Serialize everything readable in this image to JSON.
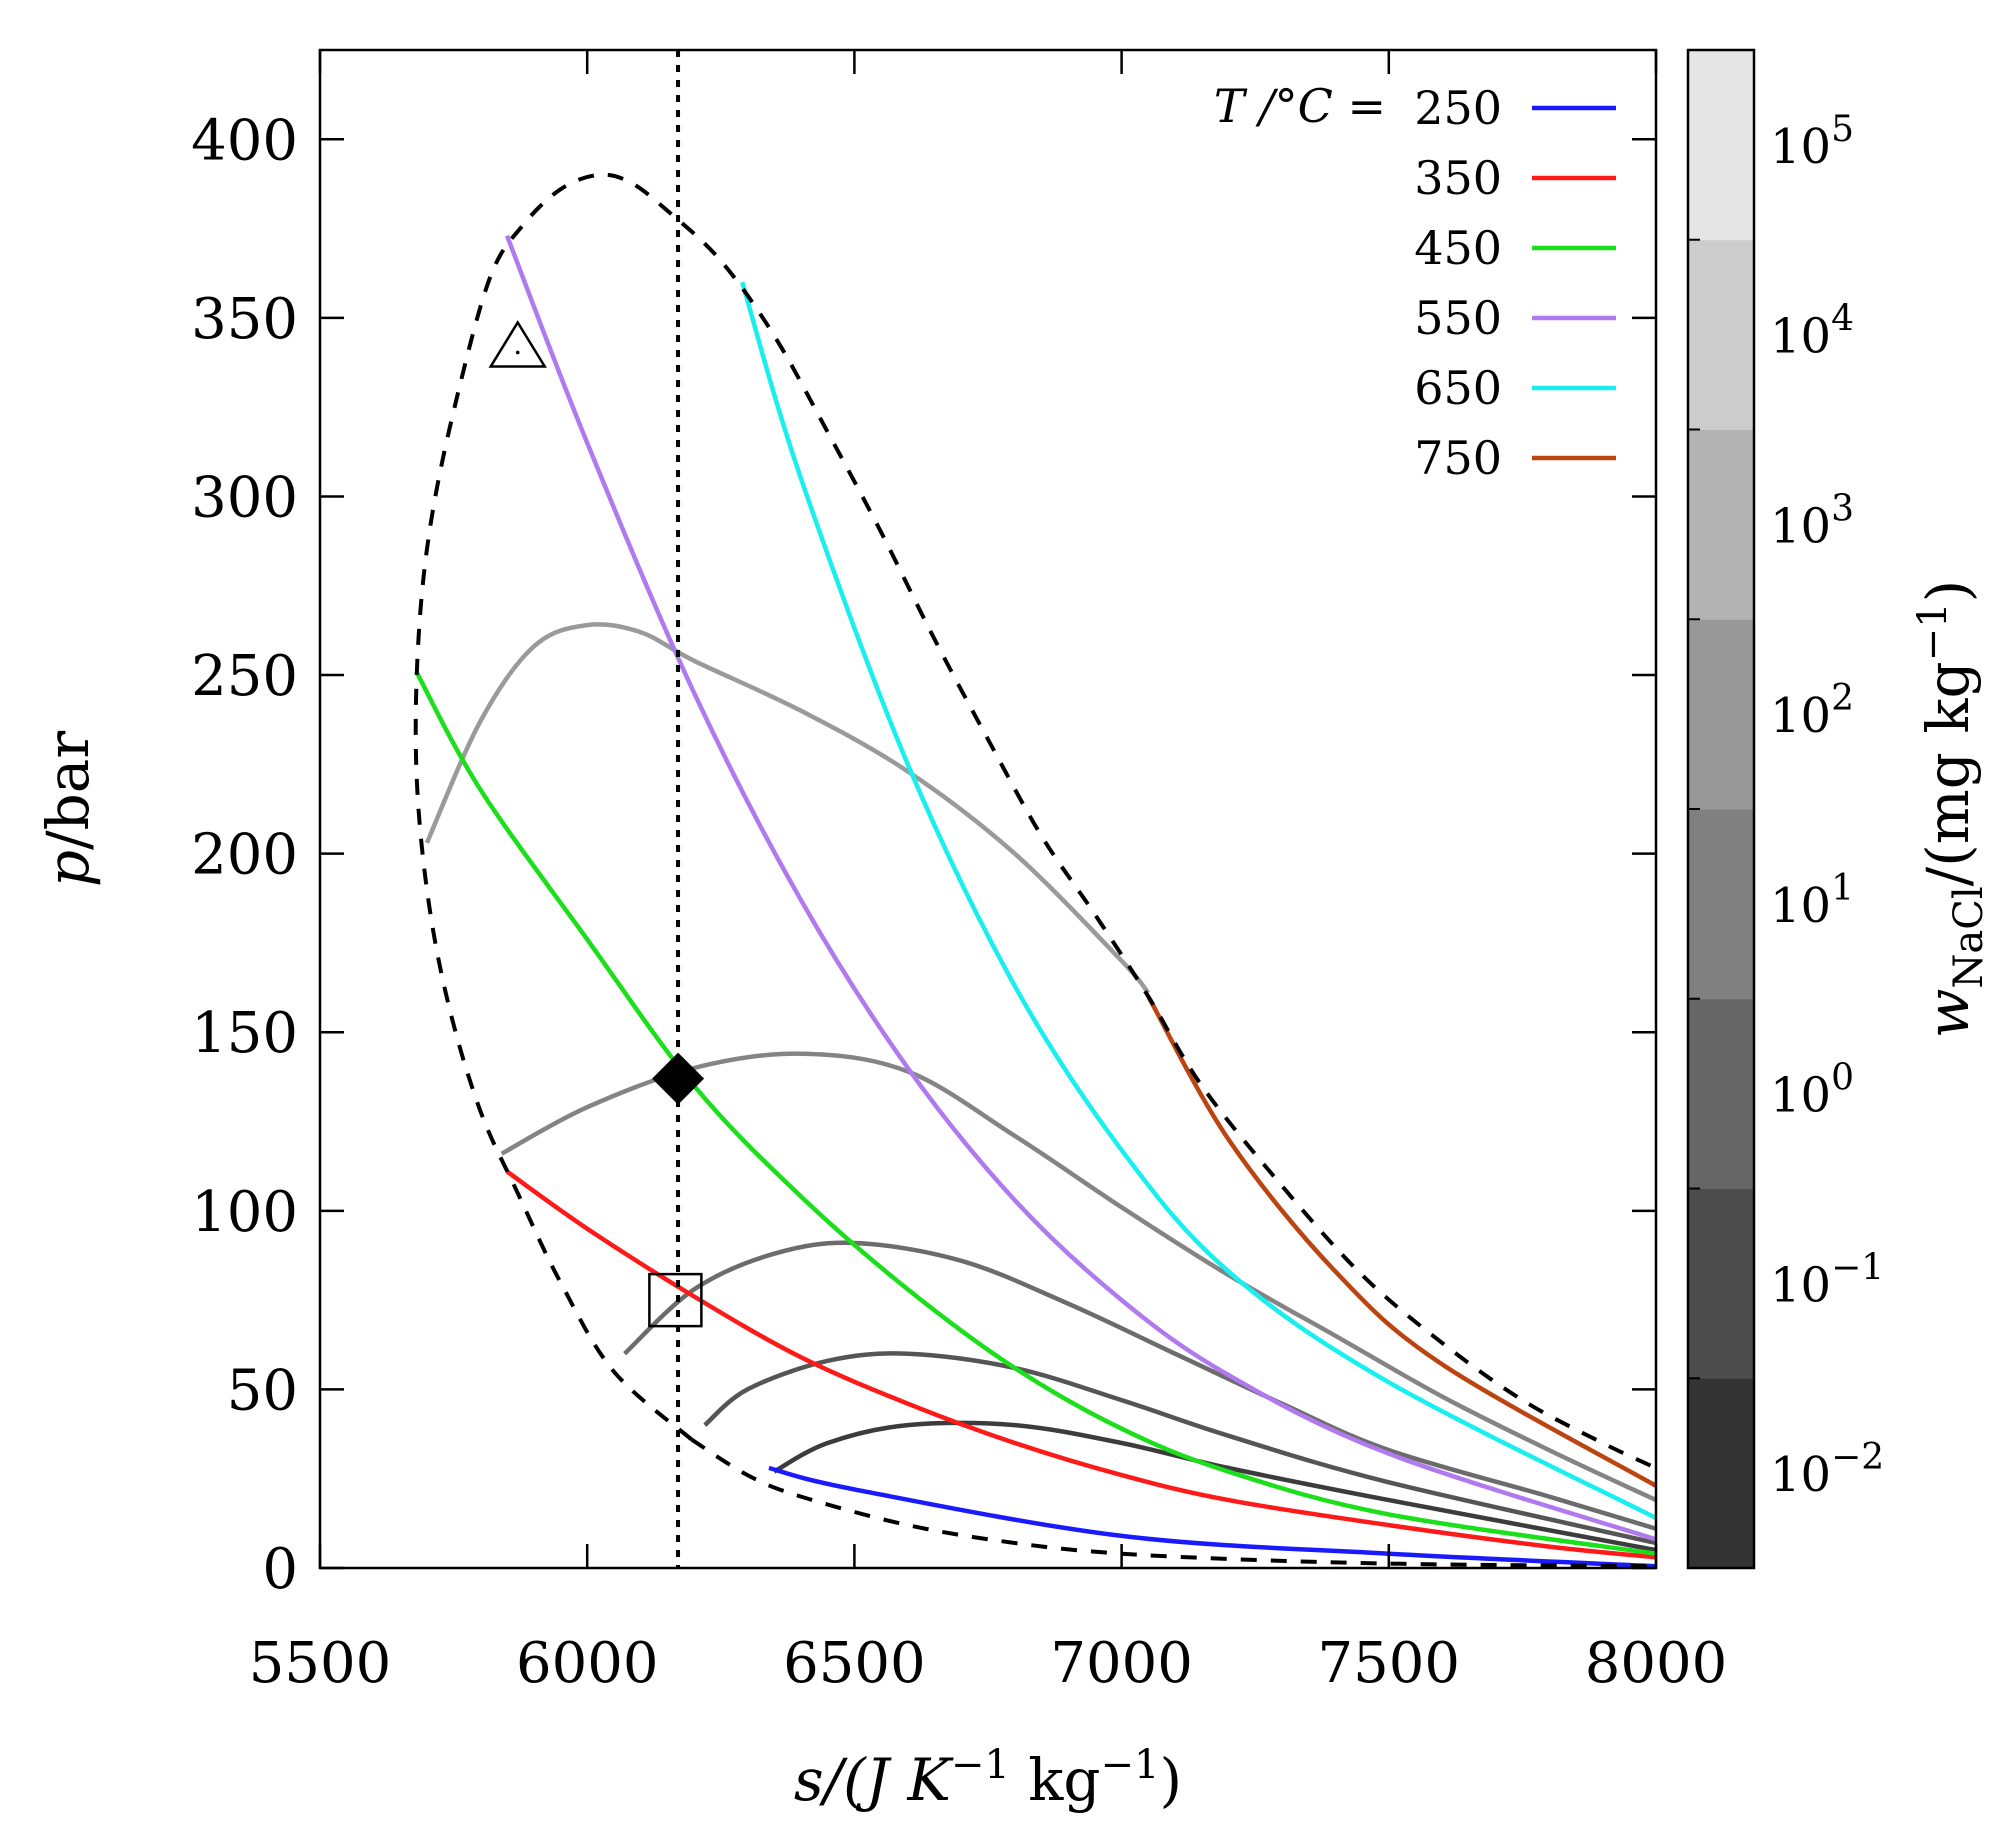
{
  "chart_data": {
    "type": "line",
    "xlabel": {
      "main": "s/(J K",
      "sup1": "−1",
      "mid": " kg",
      "sup2": "−1",
      "end": ")"
    },
    "ylabel": {
      "main": "p",
      "rest": "/bar"
    },
    "xlim": [
      5500,
      8000
    ],
    "ylim": [
      0,
      425
    ],
    "xticks": [
      5500,
      6000,
      6500,
      7000,
      7500,
      8000
    ],
    "yticks": [
      0,
      50,
      100,
      150,
      200,
      250,
      300,
      350,
      400
    ],
    "legend_title": "T /°C =",
    "legend_position": "top-right",
    "isotherms": [
      {
        "name": "250",
        "color": "#1a1aff",
        "points": [
          [
            6340,
            28
          ],
          [
            6500,
            22
          ],
          [
            7000,
            9
          ],
          [
            7500,
            4
          ],
          [
            8000,
            0.5
          ]
        ]
      },
      {
        "name": "350",
        "color": "#ff1a1a",
        "points": [
          [
            5850,
            111
          ],
          [
            6000,
            95
          ],
          [
            6200,
            76
          ],
          [
            6400,
            59
          ],
          [
            6600,
            46
          ],
          [
            6800,
            35
          ],
          [
            7000,
            26
          ],
          [
            7200,
            19
          ],
          [
            7500,
            12
          ],
          [
            7800,
            6
          ],
          [
            8000,
            3
          ]
        ]
      },
      {
        "name": "450",
        "color": "#1adf1a",
        "points": [
          [
            5680,
            251
          ],
          [
            5800,
            218
          ],
          [
            6000,
            176
          ],
          [
            6200,
            135
          ],
          [
            6400,
            104
          ],
          [
            6600,
            78
          ],
          [
            6800,
            56
          ],
          [
            7000,
            39
          ],
          [
            7200,
            27
          ],
          [
            7500,
            15
          ],
          [
            8000,
            4
          ]
        ]
      },
      {
        "name": "550",
        "color": "#b07aee",
        "points": [
          [
            5850,
            373
          ],
          [
            6000,
            315
          ],
          [
            6200,
            245
          ],
          [
            6400,
            187
          ],
          [
            6600,
            140
          ],
          [
            6800,
            103
          ],
          [
            7000,
            75
          ],
          [
            7200,
            54
          ],
          [
            7500,
            32
          ],
          [
            8000,
            8
          ]
        ]
      },
      {
        "name": "650",
        "color": "#1aefef",
        "points": [
          [
            6290,
            360
          ],
          [
            6400,
            305
          ],
          [
            6600,
            225
          ],
          [
            6800,
            163
          ],
          [
            7000,
            117
          ],
          [
            7200,
            83
          ],
          [
            7500,
            52
          ],
          [
            8000,
            14
          ]
        ]
      },
      {
        "name": "750",
        "color": "#bb4411",
        "points": [
          [
            7050,
            160
          ],
          [
            7200,
            120
          ],
          [
            7400,
            83
          ],
          [
            7600,
            57
          ],
          [
            8000,
            23
          ]
        ]
      }
    ],
    "concentration_lines": [
      {
        "color": "#9a9a9a",
        "points": [
          [
            5700,
            203
          ],
          [
            5800,
            237
          ],
          [
            5900,
            258
          ],
          [
            6000,
            264
          ],
          [
            6100,
            262
          ],
          [
            6200,
            254
          ],
          [
            6400,
            240
          ],
          [
            6600,
            223
          ],
          [
            6800,
            200
          ],
          [
            7000,
            170
          ],
          [
            7050,
            161
          ]
        ]
      },
      {
        "color": "#848484",
        "points": [
          [
            5840,
            116
          ],
          [
            6000,
            129
          ],
          [
            6200,
            140
          ],
          [
            6400,
            144
          ],
          [
            6600,
            139
          ],
          [
            6800,
            121
          ],
          [
            7000,
            101
          ],
          [
            7200,
            82
          ],
          [
            7400,
            65
          ],
          [
            7600,
            48
          ],
          [
            7800,
            33
          ],
          [
            8000,
            19
          ]
        ]
      },
      {
        "color": "#6c6c6c",
        "points": [
          [
            6070,
            60
          ],
          [
            6200,
            78
          ],
          [
            6350,
            88
          ],
          [
            6500,
            91
          ],
          [
            6700,
            86
          ],
          [
            6900,
            74
          ],
          [
            7100,
            60
          ],
          [
            7300,
            46
          ],
          [
            7500,
            33
          ],
          [
            7800,
            20
          ],
          [
            8000,
            11
          ]
        ]
      },
      {
        "color": "#555555",
        "points": [
          [
            6220,
            40
          ],
          [
            6300,
            50
          ],
          [
            6450,
            58
          ],
          [
            6600,
            60
          ],
          [
            6800,
            56
          ],
          [
            7000,
            47
          ],
          [
            7200,
            37
          ],
          [
            7500,
            24
          ],
          [
            8000,
            7
          ]
        ]
      },
      {
        "color": "#3c3c3c",
        "points": [
          [
            6350,
            27
          ],
          [
            6450,
            35
          ],
          [
            6600,
            40
          ],
          [
            6800,
            40
          ],
          [
            7000,
            35
          ],
          [
            7200,
            28
          ],
          [
            7500,
            19
          ],
          [
            8000,
            5
          ]
        ]
      }
    ],
    "boundary": [
      [
        6195,
        36
      ],
      [
        6050,
        55
      ],
      [
        5950,
        80
      ],
      [
        5870,
        105
      ],
      [
        5800,
        128
      ],
      [
        5740,
        158
      ],
      [
        5700,
        190
      ],
      [
        5680,
        225
      ],
      [
        5685,
        262
      ],
      [
        5710,
        295
      ],
      [
        5760,
        330
      ],
      [
        5820,
        362
      ],
      [
        5880,
        376
      ],
      [
        5950,
        386
      ],
      [
        6020,
        390
      ],
      [
        6080,
        388
      ],
      [
        6150,
        380
      ],
      [
        6250,
        366
      ],
      [
        6350,
        345
      ],
      [
        6450,
        318
      ],
      [
        6550,
        290
      ],
      [
        6650,
        260
      ],
      [
        6750,
        232
      ],
      [
        6850,
        205
      ],
      [
        6950,
        183
      ],
      [
        7050,
        160
      ],
      [
        7150,
        135
      ],
      [
        7300,
        107
      ],
      [
        7450,
        82
      ],
      [
        7600,
        63
      ],
      [
        7750,
        47
      ],
      [
        7900,
        35
      ],
      [
        8000,
        28
      ]
    ],
    "boundary_low": [
      [
        6195,
        36
      ],
      [
        6300,
        26
      ],
      [
        6400,
        20
      ],
      [
        6600,
        12
      ],
      [
        6800,
        7
      ],
      [
        7000,
        4
      ],
      [
        7300,
        2
      ],
      [
        7600,
        1
      ],
      [
        8000,
        0.5
      ]
    ],
    "vertical_line_x": 6170,
    "markers": [
      {
        "shape": "triangle",
        "x": 5870,
        "y": 342
      },
      {
        "shape": "diamond",
        "x": 6170,
        "y": 137
      },
      {
        "shape": "square",
        "x": 6165,
        "y": 75
      }
    ],
    "colorbar": {
      "label_main": "w",
      "label_sub": "NaCl",
      "label_rest": "/(mg kg",
      "label_sup": "−1",
      "label_end": ")",
      "exponents": [
        "−2",
        "−1",
        "0",
        "1",
        "2",
        "3",
        "4",
        "5"
      ],
      "base": "10",
      "band_colors": [
        "#333333",
        "#4c4c4c",
        "#666666",
        "#808080",
        "#999999",
        "#b3b3b3",
        "#cccccc",
        "#e5e5e5"
      ]
    }
  }
}
